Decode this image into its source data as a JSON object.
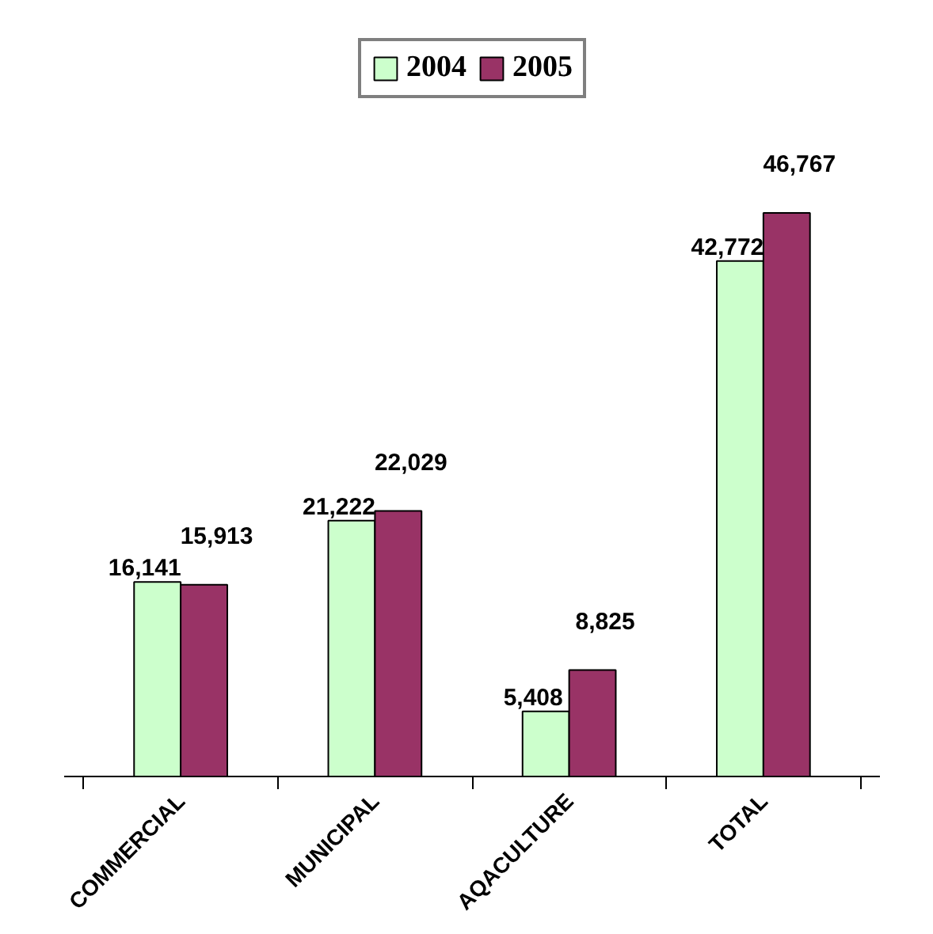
{
  "chart_data": {
    "type": "bar",
    "categories": [
      "COMMERCIAL",
      "MUNICIPAL",
      "AQACULTURE",
      "TOTAL"
    ],
    "series": [
      {
        "name": "2004",
        "color": "#ccffcc",
        "values": [
          16141,
          21222,
          5408,
          42772
        ],
        "value_labels": [
          "16,141",
          "21,222",
          "5,408",
          "42,772"
        ]
      },
      {
        "name": "2005",
        "color": "#993366",
        "values": [
          15913,
          22029,
          8825,
          46767
        ],
        "value_labels": [
          "15,913",
          "22,029",
          "8,825",
          "46,767"
        ]
      }
    ],
    "legend": "top",
    "grid": false
  }
}
